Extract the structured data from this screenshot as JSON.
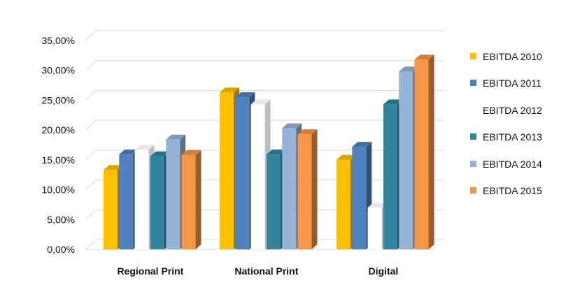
{
  "chart_data": {
    "type": "bar",
    "style": "3d-clustered-column",
    "categories": [
      "Regional Print",
      "National Print",
      "Digital"
    ],
    "series": [
      {
        "name": "EBITDA 2010",
        "color": "#FFC000",
        "values": [
          13.3,
          26.3,
          15.0
        ]
      },
      {
        "name": "EBITDA 2011",
        "color": "#4F81BD",
        "values": [
          15.9,
          25.5,
          17.2
        ]
      },
      {
        "name": "EBITDA 2012",
        "color": "#FFFFFF",
        "values": [
          16.7,
          24.3,
          7.0
        ]
      },
      {
        "name": "EBITDA 2013",
        "color": "#31849B",
        "values": [
          15.6,
          15.9,
          24.3
        ]
      },
      {
        "name": "EBITDA 2014",
        "color": "#95B3D7",
        "values": [
          18.4,
          20.3,
          29.8
        ]
      },
      {
        "name": "EBITDA 2015",
        "color": "#F79646",
        "values": [
          15.8,
          19.3,
          31.8
        ]
      }
    ],
    "y_ticks": [
      "0,00%",
      "5,00%",
      "10,00%",
      "15,00%",
      "20,00%",
      "25,00%",
      "30,00%",
      "35,00%"
    ],
    "ylim": [
      0,
      35
    ],
    "grid": true,
    "legend_position": "right"
  }
}
